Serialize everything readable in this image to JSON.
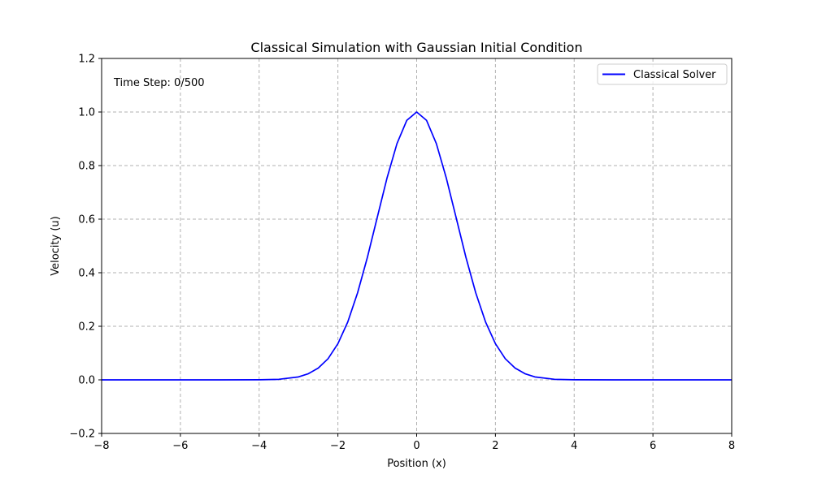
{
  "chart_data": {
    "type": "line",
    "title": "Classical Simulation with Gaussian Initial Condition",
    "xlabel": "Position (x)",
    "ylabel": "Velocity (u)",
    "xlim": [
      -8,
      8
    ],
    "ylim": [
      -0.2,
      1.2
    ],
    "x_ticks": [
      -8,
      -6,
      -4,
      -2,
      0,
      2,
      4,
      6,
      8
    ],
    "y_ticks": [
      -0.2,
      0.0,
      0.2,
      0.4,
      0.6,
      0.8,
      1.0,
      1.2
    ],
    "x_tick_labels": [
      "−8",
      "−6",
      "−4",
      "−2",
      "0",
      "2",
      "4",
      "6",
      "8"
    ],
    "y_tick_labels": [
      "−0.2",
      "0.0",
      "0.2",
      "0.4",
      "0.6",
      "0.8",
      "1.0",
      "1.2"
    ],
    "grid": true,
    "legend_position": "top-right",
    "annotation": "Time Step: 0/500",
    "series": [
      {
        "name": "Classical Solver",
        "color": "#0000ff",
        "x": [
          -8,
          -7,
          -6,
          -5,
          -4,
          -3.5,
          -3,
          -2.75,
          -2.5,
          -2.25,
          -2,
          -1.75,
          -1.5,
          -1.25,
          -1,
          -0.75,
          -0.5,
          -0.25,
          0,
          0.25,
          0.5,
          0.75,
          1,
          1.25,
          1.5,
          1.75,
          2,
          2.25,
          2.5,
          2.75,
          3,
          3.5,
          4,
          5,
          6,
          7,
          8
        ],
        "y": [
          0.0,
          0.0,
          0.0,
          0.0,
          0.0003,
          0.002,
          0.011,
          0.023,
          0.044,
          0.079,
          0.135,
          0.216,
          0.325,
          0.458,
          0.607,
          0.755,
          0.882,
          0.969,
          1.0,
          0.969,
          0.882,
          0.755,
          0.607,
          0.458,
          0.325,
          0.216,
          0.135,
          0.079,
          0.044,
          0.023,
          0.011,
          0.002,
          0.0003,
          0.0,
          0.0,
          0.0,
          0.0
        ]
      }
    ]
  }
}
